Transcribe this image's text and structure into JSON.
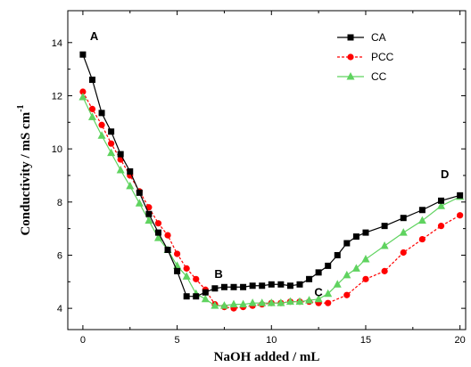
{
  "chart_data": {
    "type": "line",
    "xlabel": "NaOH added / mL",
    "ylabel": "Conductivity / mS cm",
    "ylabel_sup": "-1",
    "xlim": [
      -0.8,
      20.3
    ],
    "ylim": [
      3.2,
      15.2
    ],
    "x_ticks": [
      0,
      5,
      10,
      15,
      20
    ],
    "y_ticks": [
      4,
      6,
      8,
      10,
      12,
      14
    ],
    "x_tick_labels": [
      "0",
      "5",
      "10",
      "15",
      "20"
    ],
    "y_tick_labels": [
      "4",
      "6",
      "8",
      "10",
      "12",
      "14"
    ],
    "grid": false,
    "legend_position": "top-right",
    "annotations": [
      {
        "text": "A",
        "x": 0.6,
        "y": 14.1
      },
      {
        "text": "B",
        "x": 7.2,
        "y": 5.15
      },
      {
        "text": "C",
        "x": 12.5,
        "y": 4.45
      },
      {
        "text": "D",
        "x": 19.2,
        "y": 8.9
      }
    ],
    "series": [
      {
        "name": "CA",
        "color": "#000000",
        "marker": "square",
        "x": [
          0,
          0.5,
          1,
          1.5,
          2,
          2.5,
          3,
          3.5,
          4,
          4.5,
          5,
          5.5,
          6,
          6.5,
          7,
          7.5,
          8,
          8.5,
          9,
          9.5,
          10,
          10.5,
          11,
          11.5,
          12,
          12.5,
          13,
          13.5,
          14,
          14.5,
          15,
          16,
          17,
          18,
          19,
          20
        ],
        "y": [
          13.55,
          12.6,
          11.35,
          10.65,
          9.8,
          9.15,
          8.35,
          7.55,
          6.85,
          6.2,
          5.4,
          4.45,
          4.45,
          4.6,
          4.75,
          4.8,
          4.8,
          4.8,
          4.85,
          4.85,
          4.9,
          4.9,
          4.85,
          4.9,
          5.1,
          5.35,
          5.6,
          6.0,
          6.45,
          6.7,
          6.85,
          7.1,
          7.4,
          7.7,
          8.05,
          8.25
        ]
      },
      {
        "name": "PCC",
        "color": "#ff0000",
        "marker": "circle",
        "x": [
          0,
          0.5,
          1,
          1.5,
          2,
          2.5,
          3,
          3.5,
          4,
          4.5,
          5,
          5.5,
          6,
          6.5,
          7,
          7.5,
          8,
          8.5,
          9,
          9.5,
          10,
          10.5,
          11,
          11.5,
          12,
          12.5,
          13,
          14,
          15,
          16,
          17,
          18,
          19,
          20
        ],
        "y": [
          12.15,
          11.5,
          10.9,
          10.2,
          9.6,
          9.0,
          8.4,
          7.8,
          7.2,
          6.75,
          6.05,
          5.5,
          5.1,
          4.7,
          4.15,
          4.05,
          4.0,
          4.05,
          4.1,
          4.15,
          4.2,
          4.2,
          4.25,
          4.25,
          4.25,
          4.2,
          4.2,
          4.5,
          5.1,
          5.4,
          6.1,
          6.6,
          7.1,
          7.5
        ]
      },
      {
        "name": "CC",
        "color": "#5fd35f",
        "marker": "triangle",
        "x": [
          0,
          0.5,
          1,
          1.5,
          2,
          2.5,
          3,
          3.5,
          4,
          4.5,
          5,
          5.5,
          6,
          6.5,
          7,
          7.5,
          8,
          8.5,
          9,
          9.5,
          10,
          10.5,
          11,
          11.5,
          12,
          12.5,
          13,
          13.5,
          14,
          14.5,
          15,
          16,
          17,
          18,
          19,
          20
        ],
        "y": [
          11.95,
          11.2,
          10.5,
          9.85,
          9.2,
          8.6,
          7.95,
          7.3,
          6.65,
          6.2,
          5.6,
          5.2,
          4.55,
          4.35,
          4.1,
          4.1,
          4.15,
          4.15,
          4.2,
          4.2,
          4.2,
          4.2,
          4.25,
          4.25,
          4.3,
          4.35,
          4.55,
          4.9,
          5.25,
          5.5,
          5.85,
          6.35,
          6.85,
          7.3,
          7.85,
          8.2
        ]
      }
    ]
  }
}
